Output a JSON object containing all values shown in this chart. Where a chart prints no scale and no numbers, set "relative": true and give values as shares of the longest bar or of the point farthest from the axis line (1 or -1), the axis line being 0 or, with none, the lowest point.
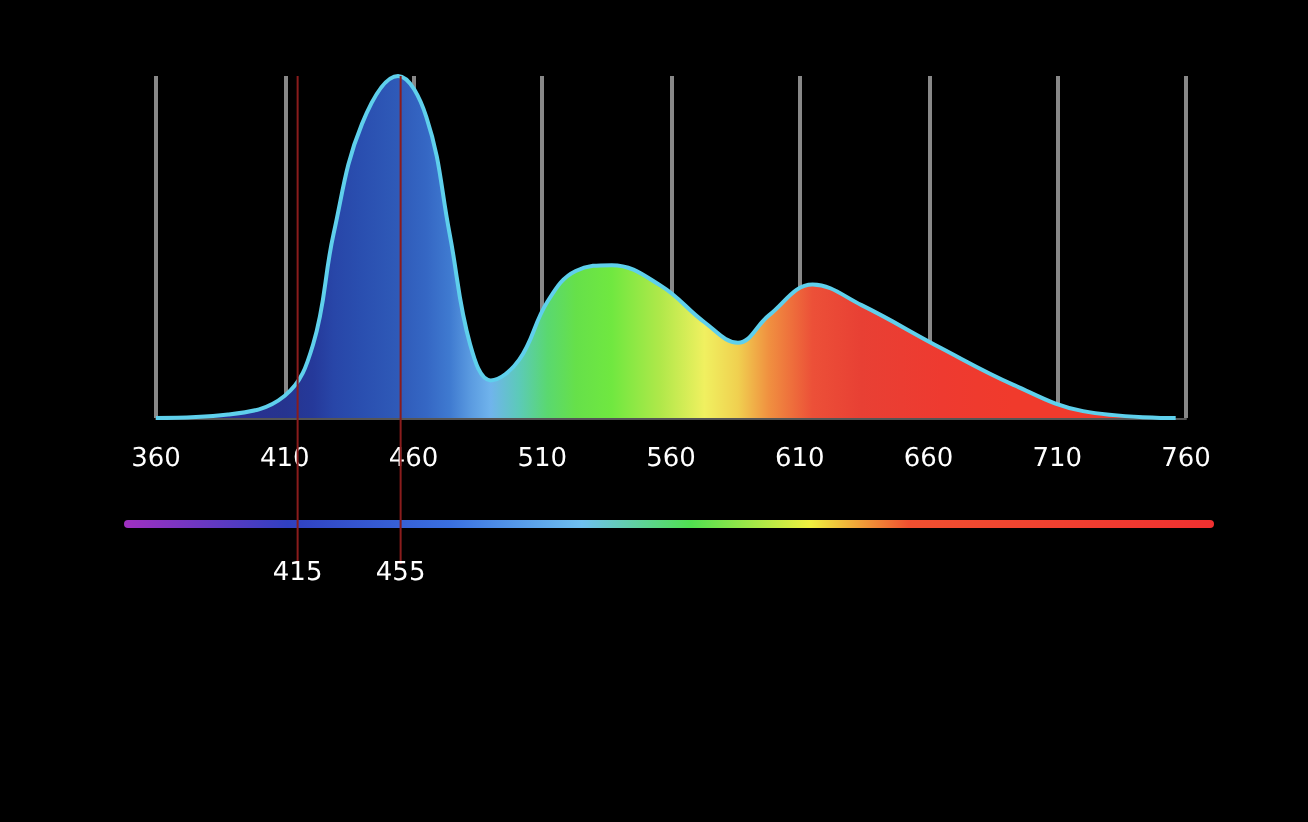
{
  "chart_data": {
    "type": "area",
    "relative": true,
    "xlim": [
      360,
      760
    ],
    "xticks": [
      360,
      410,
      460,
      510,
      560,
      610,
      660,
      710,
      760
    ],
    "grid": "x",
    "marker": "none",
    "series": [
      {
        "color": "#5fd0ec",
        "x": [
          360,
          388,
          410,
          421,
          429,
          440,
          454,
          465,
          474,
          482,
          490,
          501,
          512,
          523,
          537,
          556,
          573,
          586,
          598,
          615,
          634,
          665,
          693,
          720,
          756
        ],
        "values": [
          0,
          0.01,
          0.065,
          0.215,
          0.54,
          0.86,
          1,
          0.88,
          0.54,
          0.215,
          0.11,
          0.17,
          0.34,
          0.43,
          0.447,
          0.387,
          0.28,
          0.22,
          0.3,
          0.39,
          0.33,
          0.204,
          0.097,
          0.02,
          0
        ],
        "colors": [
          "#3a2a8a",
          "#2a2f90",
          "#26348f",
          "#25399a",
          "#2846a8",
          "#2a4fb0",
          "#2f5ab8",
          "#3567c4",
          "#3f7ad0",
          "#5a9ae0",
          "#70b4ec",
          "#5ccab8",
          "#5ad870",
          "#66e04a",
          "#70e840",
          "#b0e84a",
          "#f0f060",
          "#f0d050",
          "#f09040",
          "#ec5038",
          "#e84034",
          "#ee3a30",
          "#f03a2c",
          "#f03a2c",
          "#f03a2c"
        ]
      }
    ],
    "ref_lines": [
      {
        "axis": "x",
        "value": 415,
        "label": "415",
        "color": "#8a1c1c"
      },
      {
        "axis": "x",
        "value": 455,
        "label": "455",
        "color": "#8a1c1c"
      }
    ]
  }
}
